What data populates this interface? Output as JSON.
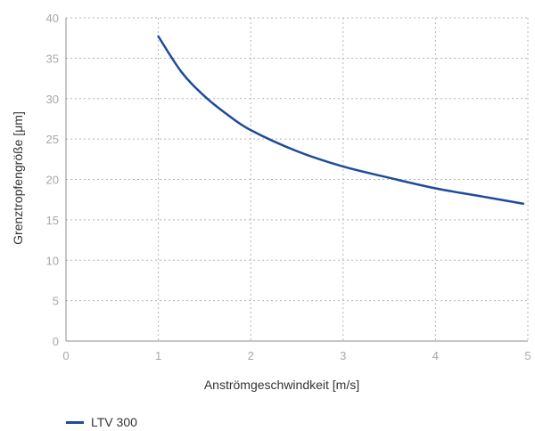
{
  "chart_data": {
    "type": "line",
    "title": "",
    "xlabel": "Anströmgeschwindkeit [m/s]",
    "ylabel": "Grenztropfengröße [μm]",
    "xlim": [
      0,
      5
    ],
    "ylim": [
      0,
      40
    ],
    "xticks": [
      "0",
      "1",
      "2",
      "3",
      "4",
      "5"
    ],
    "yticks": [
      "0",
      "5",
      "10",
      "15",
      "20",
      "25",
      "30",
      "35",
      "40"
    ],
    "grid": true,
    "legend_position": "bottom-left",
    "series": [
      {
        "name": "LTV 300",
        "color": "#1f4b99",
        "x": [
          1.0,
          1.25,
          1.5,
          1.75,
          2.0,
          2.5,
          3.0,
          3.5,
          4.0,
          4.5,
          4.95
        ],
        "y": [
          37.7,
          33.3,
          30.3,
          28.0,
          26.1,
          23.5,
          21.6,
          20.2,
          18.9,
          17.9,
          17.0
        ]
      }
    ]
  }
}
